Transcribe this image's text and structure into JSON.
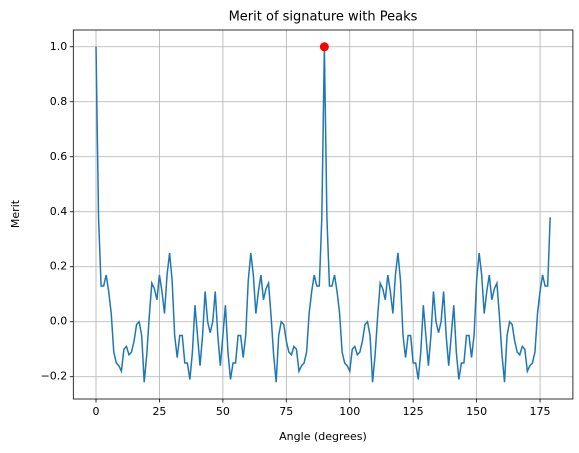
{
  "chart_data": {
    "type": "line",
    "title": "Merit of signature with Peaks",
    "xlabel": "Angle (degrees)",
    "ylabel": "Merit",
    "x": [
      0,
      1,
      2,
      3,
      4,
      5,
      6,
      7,
      8,
      9,
      10,
      11,
      12,
      13,
      14,
      15,
      16,
      17,
      18,
      19,
      20,
      21,
      22,
      23,
      24,
      25,
      26,
      27,
      28,
      29,
      30,
      31,
      32,
      33,
      34,
      35,
      36,
      37,
      38,
      39,
      40,
      41,
      42,
      43,
      44,
      45,
      46,
      47,
      48,
      49,
      50,
      51,
      52,
      53,
      54,
      55,
      56,
      57,
      58,
      59,
      60,
      61,
      62,
      63,
      64,
      65,
      66,
      67,
      68,
      69,
      70,
      71,
      72,
      73,
      74,
      75,
      76,
      77,
      78,
      79,
      80,
      81,
      82,
      83,
      84,
      85,
      86,
      87,
      88,
      89,
      90,
      91,
      92,
      93,
      94,
      95,
      96,
      97,
      98,
      99,
      100,
      101,
      102,
      103,
      104,
      105,
      106,
      107,
      108,
      109,
      110,
      111,
      112,
      113,
      114,
      115,
      116,
      117,
      118,
      119,
      120,
      121,
      122,
      123,
      124,
      125,
      126,
      127,
      128,
      129,
      130,
      131,
      132,
      133,
      134,
      135,
      136,
      137,
      138,
      139,
      140,
      141,
      142,
      143,
      144,
      145,
      146,
      147,
      148,
      149,
      150,
      151,
      152,
      153,
      154,
      155,
      156,
      157,
      158,
      159,
      160,
      161,
      162,
      163,
      164,
      165,
      166,
      167,
      168,
      169,
      170,
      171,
      172,
      173,
      174,
      175,
      176,
      177,
      178,
      179
    ],
    "series": [
      {
        "color": "#1f77b4",
        "values": [
          1.0,
          0.38,
          0.13,
          0.13,
          0.17,
          0.11,
          0.03,
          -0.11,
          -0.15,
          -0.16,
          -0.18,
          -0.1,
          -0.09,
          -0.12,
          -0.11,
          -0.07,
          -0.01,
          0.0,
          -0.05,
          -0.22,
          -0.12,
          0.02,
          0.14,
          0.12,
          0.08,
          0.17,
          0.11,
          0.03,
          0.17,
          0.25,
          0.15,
          -0.05,
          -0.13,
          -0.05,
          -0.05,
          -0.15,
          -0.15,
          -0.21,
          -0.11,
          0.06,
          -0.05,
          -0.16,
          -0.05,
          0.11,
          0.0,
          -0.04,
          0.0,
          0.11,
          -0.05,
          -0.16,
          -0.05,
          0.06,
          -0.11,
          -0.21,
          -0.15,
          -0.15,
          -0.05,
          -0.05,
          -0.13,
          -0.05,
          0.15,
          0.25,
          0.17,
          0.03,
          0.11,
          0.17,
          0.08,
          0.12,
          0.14,
          0.02,
          -0.12,
          -0.22,
          -0.05,
          0.0,
          -0.01,
          -0.07,
          -0.11,
          -0.12,
          -0.09,
          -0.1,
          -0.18,
          -0.16,
          -0.15,
          -0.11,
          0.03,
          0.11,
          0.17,
          0.13,
          0.13,
          0.38,
          1.0,
          0.38,
          0.13,
          0.13,
          0.17,
          0.11,
          0.03,
          -0.11,
          -0.15,
          -0.16,
          -0.18,
          -0.1,
          -0.09,
          -0.12,
          -0.11,
          -0.07,
          -0.01,
          0.0,
          -0.05,
          -0.22,
          -0.12,
          0.02,
          0.14,
          0.12,
          0.08,
          0.17,
          0.11,
          0.03,
          0.17,
          0.25,
          0.15,
          -0.05,
          -0.13,
          -0.05,
          -0.05,
          -0.15,
          -0.15,
          -0.21,
          -0.11,
          0.06,
          -0.05,
          -0.16,
          -0.05,
          0.11,
          0.0,
          -0.04,
          0.0,
          0.11,
          -0.05,
          -0.16,
          -0.05,
          0.06,
          -0.11,
          -0.21,
          -0.15,
          -0.15,
          -0.05,
          -0.05,
          -0.13,
          -0.05,
          0.15,
          0.25,
          0.17,
          0.03,
          0.11,
          0.17,
          0.08,
          0.12,
          0.14,
          0.02,
          -0.12,
          -0.22,
          -0.05,
          0.0,
          -0.01,
          -0.07,
          -0.11,
          -0.12,
          -0.09,
          -0.1,
          -0.18,
          -0.16,
          -0.15,
          -0.11,
          0.03,
          0.11,
          0.17,
          0.13,
          0.13,
          0.38
        ]
      }
    ],
    "peaks": {
      "x": [
        90
      ],
      "values": [
        1.0
      ],
      "color": "red"
    },
    "xlim": [
      -8.95,
      187.95
    ],
    "xticks": [
      0,
      25,
      50,
      75,
      100,
      125,
      150,
      175
    ],
    "ylim": [
      -0.281,
      1.061
    ],
    "yticks": [
      {
        "value": -0.2,
        "label": "−0.2"
      },
      {
        "value": 0.0,
        "label": "0.0"
      },
      0.2,
      0.4,
      0.6,
      0.8,
      {
        "value": 1.0,
        "label": "1.0"
      }
    ],
    "grid": true
  }
}
